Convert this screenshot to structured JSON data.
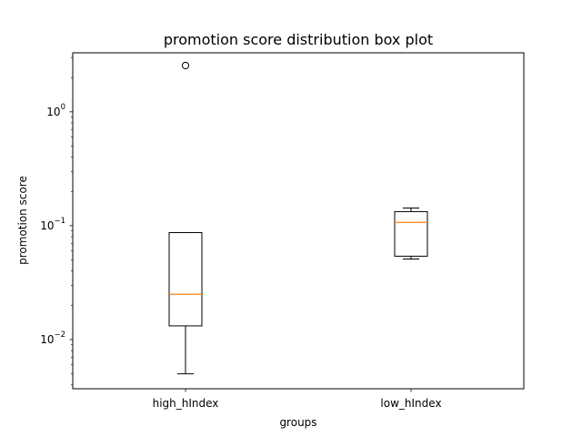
{
  "chart_data": {
    "type": "box",
    "title": "promotion score distribution box plot",
    "xlabel": "groups",
    "ylabel": "promotion score",
    "yscale": "log",
    "ylim": [
      0.0037,
      3.3
    ],
    "grid": false,
    "y_ticks": [
      {
        "value": 0.01,
        "base": "10",
        "exp": "−2"
      },
      {
        "value": 0.1,
        "base": "10",
        "exp": "−1"
      },
      {
        "value": 1,
        "base": "10",
        "exp": "0"
      }
    ],
    "categories": [
      "high_hIndex",
      "low_hIndex"
    ],
    "boxes": [
      {
        "category": "high_hIndex",
        "whisker_low": 0.005,
        "q1": 0.0132,
        "median": 0.025,
        "q3": 0.087,
        "whisker_high": 0.087,
        "outliers": [
          2.55
        ]
      },
      {
        "category": "low_hIndex",
        "whisker_low": 0.051,
        "q1": 0.054,
        "median": 0.107,
        "q3": 0.133,
        "whisker_high": 0.143,
        "outliers": []
      }
    ],
    "colors": {
      "box": "#000000",
      "median": "#ff7f0e",
      "background": "#ffffff"
    }
  }
}
